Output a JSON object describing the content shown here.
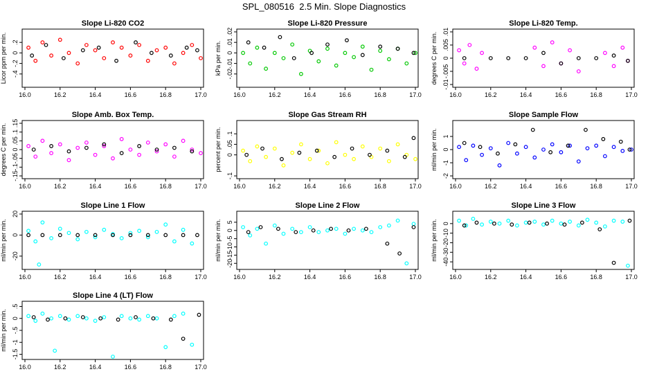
{
  "page": {
    "title": "SPL_080516  2.5 Min. Slope Diagnostics"
  },
  "overlay_color": "#000000",
  "chart_data": [
    {
      "type": "scatter",
      "title": "Slope Li-820 CO2",
      "ylabel": "Licor ppm per min.",
      "color": "#ff0000",
      "xlim": [
        16.0,
        17.0
      ],
      "ylim": [
        -0.6,
        0.4
      ],
      "xticks": [
        16.0,
        16.2,
        16.4,
        16.6,
        16.8,
        17.0
      ],
      "yticks": [
        -0.4,
        -0.2,
        0.0,
        0.2
      ],
      "series": [
        {
          "x": [
            16.02,
            16.06,
            16.1,
            16.15,
            16.2,
            16.25,
            16.3,
            16.35,
            16.4,
            16.45,
            16.5,
            16.55,
            16.6,
            16.65,
            16.7,
            16.75,
            16.8,
            16.85,
            16.9,
            16.95,
            17.0
          ],
          "y": [
            0.1,
            -0.15,
            0.2,
            -0.05,
            0.25,
            0.0,
            -0.2,
            0.15,
            0.05,
            -0.1,
            0.2,
            0.1,
            -0.05,
            0.15,
            -0.15,
            0.05,
            0.1,
            -0.2,
            0.0,
            0.15,
            -0.1
          ]
        },
        {
          "x": [
            16.04,
            16.12,
            16.22,
            16.33,
            16.42,
            16.52,
            16.63,
            16.72,
            16.83,
            16.92,
            16.98
          ],
          "y": [
            -0.05,
            0.15,
            -0.1,
            0.05,
            0.1,
            -0.15,
            0.2,
            0.0,
            -0.05,
            0.1,
            0.05
          ]
        }
      ]
    },
    {
      "type": "scatter",
      "title": "Slope Li-820 Pressure",
      "ylabel": "kPa per min.",
      "color": "#00c800",
      "xlim": [
        16.0,
        17.0
      ],
      "ylim": [
        -0.03,
        0.02
      ],
      "xticks": [
        16.0,
        16.2,
        16.4,
        16.6,
        16.8,
        17.0
      ],
      "yticks": [
        -0.02,
        -0.01,
        0.0,
        0.01,
        0.02
      ],
      "series": [
        {
          "x": [
            16.02,
            16.06,
            16.1,
            16.15,
            16.2,
            16.25,
            16.3,
            16.35,
            16.4,
            16.45,
            16.5,
            16.55,
            16.6,
            16.65,
            16.7,
            16.75,
            16.8,
            16.85,
            16.9,
            16.95,
            17.0
          ],
          "y": [
            0.0,
            -0.01,
            0.005,
            -0.015,
            0.0,
            -0.005,
            0.008,
            -0.02,
            0.002,
            -0.008,
            0.004,
            -0.012,
            0.0,
            -0.004,
            0.006,
            -0.016,
            0.002,
            -0.006,
            0.004,
            -0.01,
            0.0
          ]
        },
        {
          "x": [
            16.05,
            16.14,
            16.23,
            16.31,
            16.41,
            16.5,
            16.61,
            16.7,
            16.8,
            16.9,
            16.99
          ],
          "y": [
            0.01,
            0.005,
            0.015,
            -0.005,
            0.0,
            0.008,
            0.012,
            -0.002,
            0.006,
            0.004,
            0.0
          ]
        }
      ]
    },
    {
      "type": "scatter",
      "title": "Slope Li-820 Temp.",
      "ylabel": "degrees C per min.",
      "color": "#ff00ff",
      "xlim": [
        16.0,
        17.0
      ],
      "ylim": [
        -0.01,
        0.01
      ],
      "xticks": [
        16.0,
        16.2,
        16.4,
        16.6,
        16.8,
        17.0
      ],
      "yticks": [
        -0.01,
        -0.005,
        0.0,
        0.005,
        0.01
      ],
      "series": [
        {
          "x": [
            16.02,
            16.05,
            16.08,
            16.12,
            16.15,
            16.45,
            16.5,
            16.55,
            16.6,
            16.65,
            16.7,
            16.85,
            16.9,
            16.95,
            16.98
          ],
          "y": [
            0.003,
            -0.002,
            0.005,
            -0.004,
            0.002,
            0.004,
            -0.003,
            0.006,
            -0.002,
            0.003,
            -0.005,
            0.002,
            -0.003,
            0.004,
            -0.001
          ]
        },
        {
          "x": [
            16.05,
            16.2,
            16.3,
            16.4,
            16.5,
            16.6,
            16.7,
            16.8,
            16.9,
            16.98
          ],
          "y": [
            0.0,
            0.0,
            0.0,
            0.0,
            0.002,
            -0.002,
            0.0,
            0.0,
            0.001,
            -0.001
          ]
        }
      ]
    },
    {
      "type": "scatter",
      "title": "Slope Amb. Box Temp.",
      "ylabel": "degrees C per min.",
      "color": "#ff00ff",
      "xlim": [
        16.0,
        17.0
      ],
      "ylim": [
        -0.15,
        0.15
      ],
      "xticks": [
        16.0,
        16.2,
        16.4,
        16.6,
        16.8,
        17.0
      ],
      "yticks": [
        -0.15,
        -0.1,
        -0.05,
        0.0,
        0.05,
        0.1,
        0.15
      ],
      "series": [
        {
          "x": [
            16.02,
            16.06,
            16.1,
            16.15,
            16.2,
            16.25,
            16.3,
            16.35,
            16.4,
            16.45,
            16.5,
            16.55,
            16.6,
            16.65,
            16.7,
            16.75,
            16.8,
            16.85,
            16.9,
            16.95,
            17.0
          ],
          "y": [
            0.02,
            -0.04,
            0.05,
            -0.02,
            0.03,
            -0.06,
            0.01,
            0.04,
            -0.03,
            0.02,
            -0.05,
            0.06,
            0.0,
            -0.03,
            0.04,
            -0.01,
            0.03,
            -0.04,
            0.05,
            0.0,
            -0.02
          ]
        },
        {
          "x": [
            16.05,
            16.15,
            16.25,
            16.35,
            16.45,
            16.55,
            16.65,
            16.75,
            16.85,
            16.95
          ],
          "y": [
            0.0,
            0.02,
            -0.01,
            0.01,
            0.03,
            -0.02,
            0.02,
            0.0,
            0.01,
            -0.01
          ]
        }
      ]
    },
    {
      "type": "scatter",
      "title": "Slope Gas Stream RH",
      "ylabel": "percent per min.",
      "color": "#ffff00",
      "xlim": [
        16.0,
        17.0
      ],
      "ylim": [
        -0.1,
        0.15
      ],
      "xticks": [
        16.0,
        16.2,
        16.4,
        16.6,
        16.8,
        17.0
      ],
      "yticks": [
        -0.1,
        0.0,
        0.05,
        0.1
      ],
      "series": [
        {
          "x": [
            16.02,
            16.06,
            16.1,
            16.15,
            16.2,
            16.25,
            16.3,
            16.35,
            16.4,
            16.45,
            16.5,
            16.55,
            16.6,
            16.65,
            16.7,
            16.75,
            16.8,
            16.85,
            16.9,
            16.95,
            17.0
          ],
          "y": [
            0.02,
            -0.03,
            0.04,
            -0.01,
            0.03,
            -0.05,
            0.01,
            0.05,
            -0.02,
            0.02,
            -0.04,
            0.06,
            0.0,
            -0.02,
            0.04,
            -0.01,
            0.03,
            -0.03,
            0.05,
            0.0,
            -0.02
          ]
        },
        {
          "x": [
            16.04,
            16.13,
            16.24,
            16.34,
            16.44,
            16.54,
            16.64,
            16.74,
            16.84,
            16.94,
            16.99
          ],
          "y": [
            0.0,
            0.03,
            -0.02,
            0.01,
            0.02,
            -0.01,
            0.03,
            0.0,
            0.02,
            -0.01,
            0.08
          ]
        }
      ]
    },
    {
      "type": "scatter",
      "title": "Slope Sample Flow",
      "ylabel": "ml/min per min.",
      "color": "#0000ff",
      "xlim": [
        16.0,
        17.0
      ],
      "ylim": [
        -2.0,
        2.0
      ],
      "xticks": [
        16.0,
        16.2,
        16.4,
        16.6,
        16.8,
        17.0
      ],
      "yticks": [
        -2,
        -1,
        0,
        1
      ],
      "series": [
        {
          "x": [
            16.02,
            16.06,
            16.1,
            16.15,
            16.2,
            16.25,
            16.3,
            16.35,
            16.4,
            16.45,
            16.5,
            16.55,
            16.6,
            16.65,
            16.7,
            16.75,
            16.8,
            16.85,
            16.9,
            16.95,
            17.0
          ],
          "y": [
            0.2,
            -0.8,
            0.3,
            -0.4,
            0.1,
            -1.2,
            0.5,
            -0.3,
            0.2,
            -0.6,
            0.0,
            0.4,
            -0.2,
            0.3,
            -0.9,
            0.1,
            0.3,
            -0.5,
            0.2,
            -0.1,
            0.0
          ]
        },
        {
          "x": [
            16.05,
            16.14,
            16.24,
            16.34,
            16.44,
            16.54,
            16.64,
            16.74,
            16.84,
            16.94,
            16.99
          ],
          "y": [
            0.5,
            0.2,
            -0.3,
            0.4,
            1.5,
            -0.2,
            0.3,
            1.5,
            0.8,
            0.6,
            0.0
          ]
        }
      ]
    },
    {
      "type": "scatter",
      "title": "Slope Line 1 Flow",
      "ylabel": "ml/min per min.",
      "color": "#00ffff",
      "xlim": [
        16.0,
        17.0
      ],
      "ylim": [
        -30,
        20
      ],
      "xticks": [
        16.0,
        16.2,
        16.4,
        16.6,
        16.8,
        17.0
      ],
      "yticks": [
        -20,
        0,
        20
      ],
      "series": [
        {
          "x": [
            16.02,
            16.06,
            16.08,
            16.1,
            16.15,
            16.2,
            16.25,
            16.3,
            16.35,
            16.4,
            16.45,
            16.5,
            16.55,
            16.6,
            16.65,
            16.7,
            16.75,
            16.8,
            16.85,
            16.9,
            16.95
          ],
          "y": [
            4,
            -6,
            -28,
            12,
            -3,
            6,
            2,
            -4,
            3,
            -2,
            5,
            1,
            -3,
            2,
            4,
            -2,
            3,
            10,
            -6,
            5,
            -8
          ]
        },
        {
          "x": [
            16.02,
            16.1,
            16.2,
            16.3,
            16.4,
            16.5,
            16.6,
            16.7,
            16.8,
            16.9,
            16.98
          ],
          "y": [
            0,
            0,
            0,
            0,
            0,
            0,
            0,
            0,
            0,
            0,
            0
          ]
        }
      ]
    },
    {
      "type": "scatter",
      "title": "Slope Line 2 Flow",
      "ylabel": "ml/min per min.",
      "color": "#00ffff",
      "xlim": [
        16.0,
        17.0
      ],
      "ylim": [
        -22,
        10
      ],
      "xticks": [
        16.0,
        16.2,
        16.4,
        16.6,
        16.8,
        17.0
      ],
      "yticks": [
        -20,
        -15,
        -10,
        -5,
        0,
        5
      ],
      "series": [
        {
          "x": [
            16.02,
            16.06,
            16.1,
            16.15,
            16.2,
            16.25,
            16.3,
            16.35,
            16.4,
            16.45,
            16.5,
            16.55,
            16.6,
            16.65,
            16.7,
            16.75,
            16.8,
            16.85,
            16.9,
            16.95,
            16.99
          ],
          "y": [
            2,
            -3,
            1,
            -8,
            3,
            -2,
            1,
            -1,
            2,
            -1,
            0,
            1,
            -2,
            1,
            0,
            -1,
            2,
            3,
            6,
            -20,
            4
          ]
        },
        {
          "x": [
            16.05,
            16.12,
            16.22,
            16.32,
            16.42,
            16.52,
            16.62,
            16.72,
            16.84,
            16.91,
            16.99
          ],
          "y": [
            -1,
            2,
            1,
            -1,
            0,
            1,
            0,
            1,
            -8,
            -14,
            2
          ]
        }
      ]
    },
    {
      "type": "scatter",
      "title": "Slope Line 3 Flow",
      "ylabel": "ml/min per min.",
      "color": "#00ffff",
      "xlim": [
        16.0,
        17.0
      ],
      "ylim": [
        -45,
        10
      ],
      "xticks": [
        16.0,
        16.2,
        16.4,
        16.6,
        16.8,
        17.0
      ],
      "yticks": [
        -40,
        -30,
        -20,
        -10,
        0
      ],
      "series": [
        {
          "x": [
            16.02,
            16.06,
            16.1,
            16.15,
            16.2,
            16.25,
            16.3,
            16.35,
            16.4,
            16.45,
            16.5,
            16.55,
            16.6,
            16.65,
            16.7,
            16.75,
            16.8,
            16.85,
            16.9,
            16.95,
            16.98
          ],
          "y": [
            3,
            -2,
            5,
            -1,
            2,
            0,
            3,
            -2,
            1,
            2,
            -1,
            3,
            0,
            2,
            -2,
            4,
            1,
            -3,
            3,
            2,
            -44
          ]
        },
        {
          "x": [
            16.05,
            16.12,
            16.22,
            16.32,
            16.42,
            16.52,
            16.62,
            16.72,
            16.82,
            16.9,
            16.99
          ],
          "y": [
            -2,
            1,
            0,
            -1,
            1,
            0,
            -1,
            1,
            -6,
            -41,
            3
          ]
        }
      ]
    },
    {
      "type": "scatter",
      "title": "Slope Line 4 (LT) Flow",
      "ylabel": "ml/min per min.",
      "color": "#00ffff",
      "xlim": [
        16.0,
        17.0
      ],
      "ylim": [
        -1.6,
        0.6
      ],
      "xticks": [
        16.0,
        16.2,
        16.4,
        16.6,
        16.8,
        17.0
      ],
      "yticks": [
        -1.5,
        -1.0,
        -0.5,
        0.0,
        0.5
      ],
      "series": [
        {
          "x": [
            16.02,
            16.06,
            16.1,
            16.15,
            16.17,
            16.2,
            16.25,
            16.3,
            16.35,
            16.4,
            16.45,
            16.5,
            16.55,
            16.6,
            16.65,
            16.7,
            16.75,
            16.8,
            16.85,
            16.9,
            16.95
          ],
          "y": [
            0.1,
            -0.1,
            0.2,
            0.0,
            -1.35,
            0.1,
            -0.05,
            0.1,
            0.0,
            -0.1,
            0.05,
            -1.6,
            0.1,
            0.0,
            -0.05,
            0.1,
            0.0,
            -1.2,
            0.1,
            0.2,
            -1.1
          ]
        },
        {
          "x": [
            16.05,
            16.13,
            16.23,
            16.33,
            16.43,
            16.53,
            16.63,
            16.73,
            16.83,
            16.9,
            16.99
          ],
          "y": [
            0.05,
            -0.05,
            0.0,
            0.05,
            0.0,
            -0.05,
            0.05,
            0.0,
            -0.05,
            -0.85,
            0.15
          ]
        }
      ]
    }
  ]
}
